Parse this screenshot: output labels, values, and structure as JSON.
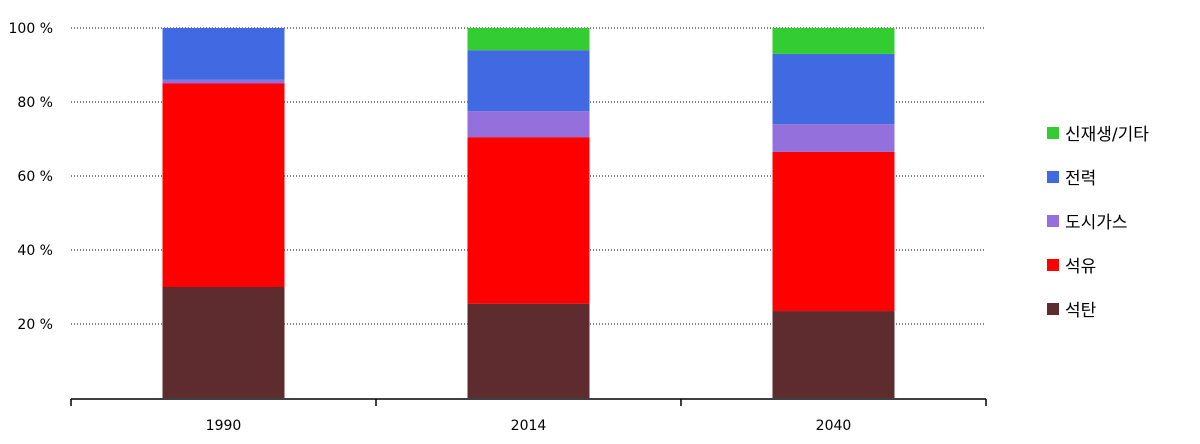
{
  "chart_data": {
    "type": "bar",
    "stacked": true,
    "categories": [
      "1990",
      "2014",
      "2040"
    ],
    "series": [
      {
        "name": "석탄",
        "color": "#5e2c2f",
        "values": [
          30,
          25.5,
          23.5
        ]
      },
      {
        "name": "석유",
        "color": "#ff0000",
        "values": [
          55,
          45,
          43
        ]
      },
      {
        "name": "도시가스",
        "color": "#9370db",
        "values": [
          1,
          7,
          7.5
        ]
      },
      {
        "name": "전력",
        "color": "#4169e1",
        "values": [
          14,
          16.5,
          19
        ]
      },
      {
        "name": "신재생/기타",
        "color": "#33cc33",
        "values": [
          0,
          6,
          7
        ]
      }
    ],
    "y_ticks": [
      "20 %",
      "40 %",
      "60 %",
      "80 %",
      "100 %"
    ],
    "ylim": [
      0,
      100
    ],
    "grid": true,
    "legend_position": "right",
    "title": "",
    "xlabel": "",
    "ylabel": ""
  }
}
